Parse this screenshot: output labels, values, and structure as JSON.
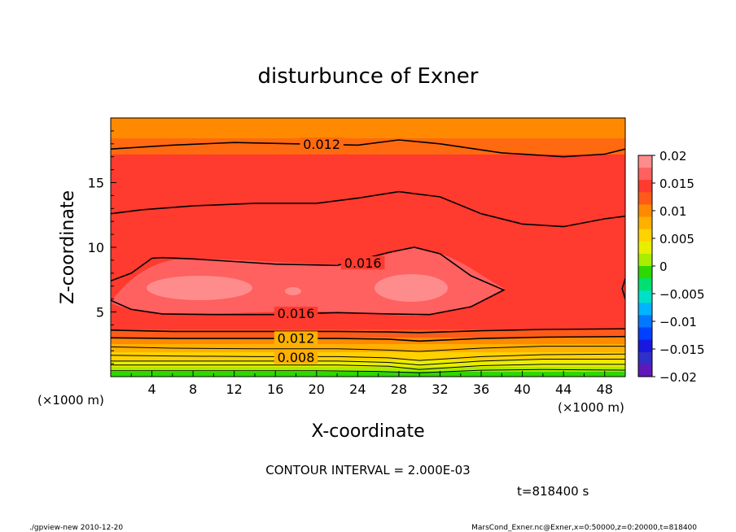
{
  "chart_data": {
    "type": "heatmap",
    "title": "disturbunce of Exner",
    "xlabel": "X-coordinate",
    "ylabel": "Z-coordinate",
    "x_unit_left": "(×1000 m)",
    "x_unit_right": "(×1000 m)",
    "xlim": [
      0,
      50
    ],
    "ylim": [
      0,
      20
    ],
    "xticks": [
      "4",
      "8",
      "12",
      "16",
      "20",
      "24",
      "28",
      "32",
      "36",
      "40",
      "44",
      "48"
    ],
    "yticks": [
      "5",
      "10",
      "15"
    ],
    "contour_interval_text": "CONTOUR INTERVAL = 2.000E-03",
    "time_text": "t=818400 s",
    "footer_left": "./gpview-new   2010-12-20",
    "footer_right": "MarsCond_Exner.nc@Exner,x=0:50000,z=0:20000,t=818400",
    "colorbar": {
      "labels": [
        "0.02",
        "0.015",
        "0.01",
        "0.005",
        "0",
        "−0.005",
        "−0.01",
        "−0.015",
        "−0.02"
      ],
      "levels": [
        0.02,
        0.015,
        0.01,
        0.005,
        0,
        -0.005,
        -0.01,
        -0.015,
        -0.02
      ],
      "colors": [
        "#ff8c8c",
        "#ff6060",
        "#ff3a2e",
        "#ff5a1a",
        "#ff8a00",
        "#ffb000",
        "#ffd200",
        "#e8ee00",
        "#a8ec00",
        "#2cd800",
        "#00e070",
        "#00e0c8",
        "#00b4ff",
        "#0078ff",
        "#0040ff",
        "#1818e0",
        "#3030c8",
        "#6018b8"
      ]
    },
    "contour_labels": [
      {
        "text": "0.012",
        "x": 20.5,
        "z": 18.0
      },
      {
        "text": "0.016",
        "x": 24.5,
        "z": 8.8
      },
      {
        "text": "0.016",
        "x": 18.0,
        "z": 4.9
      },
      {
        "text": "0.012",
        "x": 18.0,
        "z": 3.0
      },
      {
        "text": "0.008",
        "x": 18.0,
        "z": 1.5
      }
    ],
    "contour_lines": [
      {
        "level": 0.002,
        "points": [
          [
            0,
            0.45
          ],
          [
            6,
            0.45
          ],
          [
            12,
            0.45
          ],
          [
            20,
            0.45
          ],
          [
            26,
            0.4
          ],
          [
            30,
            0.3
          ],
          [
            36,
            0.5
          ],
          [
            42,
            0.55
          ],
          [
            50,
            0.5
          ]
        ]
      },
      {
        "level": 0.004,
        "points": [
          [
            0,
            0.9
          ],
          [
            6,
            0.9
          ],
          [
            14,
            0.9
          ],
          [
            22,
            0.9
          ],
          [
            27,
            0.8
          ],
          [
            30,
            0.55
          ],
          [
            36,
            0.85
          ],
          [
            42,
            0.95
          ],
          [
            50,
            0.95
          ]
        ]
      },
      {
        "level": 0.006,
        "points": [
          [
            0,
            1.2
          ],
          [
            6,
            1.2
          ],
          [
            14,
            1.2
          ],
          [
            22,
            1.2
          ],
          [
            27,
            1.1
          ],
          [
            30,
            0.9
          ],
          [
            36,
            1.2
          ],
          [
            42,
            1.35
          ],
          [
            50,
            1.35
          ]
        ]
      },
      {
        "level": 0.008,
        "points": [
          [
            0,
            1.65
          ],
          [
            6,
            1.6
          ],
          [
            14,
            1.55
          ],
          [
            22,
            1.55
          ],
          [
            27,
            1.45
          ],
          [
            30,
            1.25
          ],
          [
            36,
            1.55
          ],
          [
            42,
            1.7
          ],
          [
            50,
            1.75
          ]
        ]
      },
      {
        "level": 0.01,
        "points": [
          [
            0,
            2.3
          ],
          [
            6,
            2.2
          ],
          [
            14,
            2.15
          ],
          [
            22,
            2.15
          ],
          [
            27,
            2.05
          ],
          [
            30,
            1.95
          ],
          [
            36,
            2.2
          ],
          [
            42,
            2.35
          ],
          [
            50,
            2.35
          ]
        ]
      },
      {
        "level": 0.012,
        "points": [
          [
            0,
            3.0
          ],
          [
            6,
            2.95
          ],
          [
            14,
            2.95
          ],
          [
            22,
            2.95
          ],
          [
            27,
            2.9
          ],
          [
            30,
            2.75
          ],
          [
            36,
            2.95
          ],
          [
            42,
            3.05
          ],
          [
            50,
            3.1
          ]
        ]
      },
      {
        "level": 0.014,
        "points": [
          [
            0,
            3.6
          ],
          [
            6,
            3.5
          ],
          [
            14,
            3.5
          ],
          [
            22,
            3.5
          ],
          [
            27,
            3.45
          ],
          [
            30,
            3.4
          ],
          [
            36,
            3.55
          ],
          [
            42,
            3.65
          ],
          [
            50,
            3.7
          ]
        ]
      },
      {
        "level": 0.016,
        "points": [
          [
            0,
            5.9
          ],
          [
            2,
            5.2
          ],
          [
            5,
            4.85
          ],
          [
            10,
            4.8
          ],
          [
            16,
            4.8
          ],
          [
            22,
            4.95
          ],
          [
            27,
            4.85
          ],
          [
            31,
            4.8
          ],
          [
            35,
            5.4
          ],
          [
            38.2,
            6.7
          ],
          [
            35,
            7.8
          ],
          [
            32,
            9.5
          ],
          [
            29.5,
            10.0
          ],
          [
            27,
            9.6
          ],
          [
            22,
            8.6
          ],
          [
            16,
            8.7
          ],
          [
            12,
            8.9
          ],
          [
            8,
            9.1
          ],
          [
            5,
            9.2
          ],
          [
            4,
            9.15
          ],
          [
            2,
            8.0
          ],
          [
            0,
            7.4
          ]
        ]
      },
      {
        "level": 0.016,
        "points": [
          [
            50,
            7.6
          ],
          [
            49.7,
            6.8
          ],
          [
            50,
            6.0
          ]
        ]
      },
      {
        "level": 0.014,
        "points": [
          [
            0,
            12.6
          ],
          [
            3,
            12.9
          ],
          [
            8,
            13.2
          ],
          [
            14,
            13.4
          ],
          [
            20,
            13.4
          ],
          [
            24,
            13.8
          ],
          [
            28,
            14.3
          ],
          [
            32,
            13.9
          ],
          [
            36,
            12.6
          ],
          [
            40,
            11.8
          ],
          [
            44,
            11.6
          ],
          [
            48,
            12.2
          ],
          [
            50,
            12.4
          ]
        ]
      },
      {
        "level": 0.012,
        "points": [
          [
            0,
            17.6
          ],
          [
            6,
            17.9
          ],
          [
            12,
            18.1
          ],
          [
            18,
            18.0
          ],
          [
            24,
            17.9
          ],
          [
            28,
            18.3
          ],
          [
            32,
            18.0
          ],
          [
            38,
            17.3
          ],
          [
            44,
            17.0
          ],
          [
            48,
            17.2
          ],
          [
            50,
            17.6
          ]
        ]
      }
    ]
  }
}
